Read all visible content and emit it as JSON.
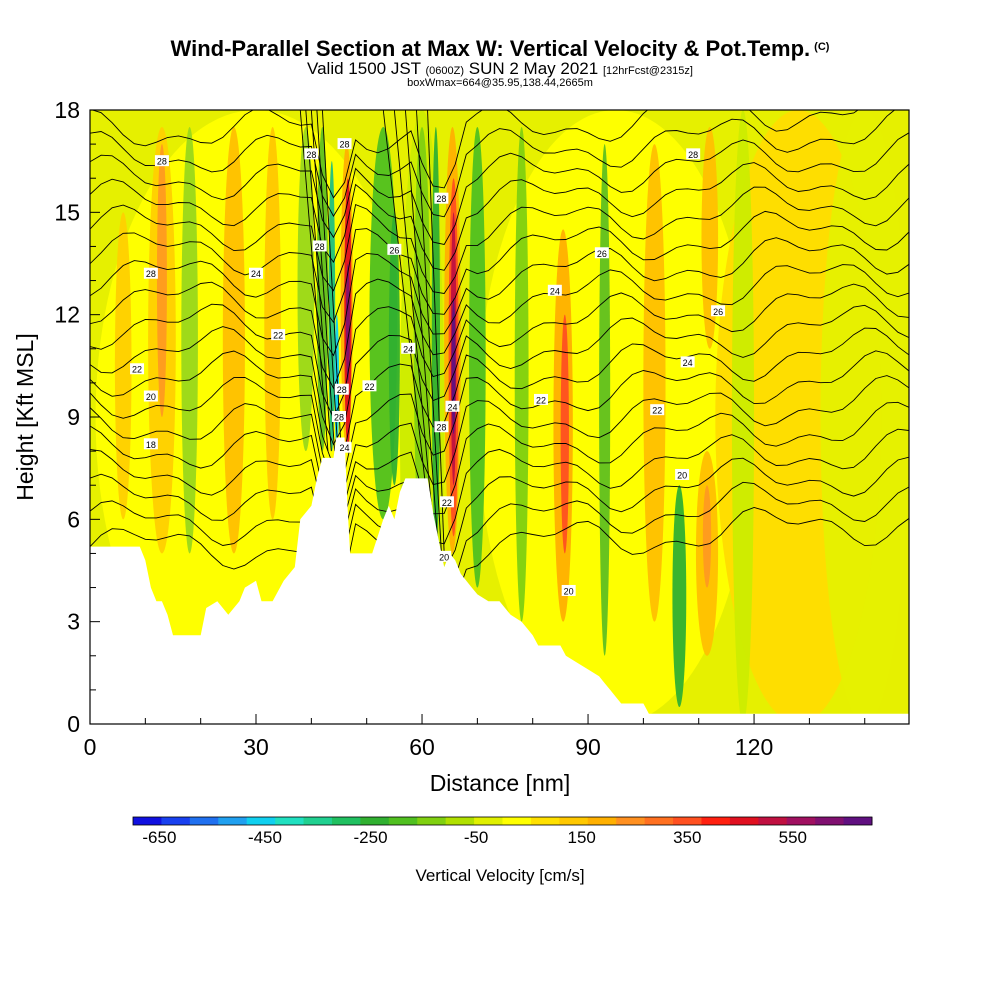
{
  "chart_data": {
    "type": "heatmap",
    "title": "Wind-Parallel Section at Max W: Vertical Velocity & Pot.Temp.",
    "title_mark": "(C)",
    "subtitle_main": "Valid 1500 JST",
    "subtitle_zulu": "(0600Z)",
    "subtitle_date": "SUN 2 May 2021",
    "subtitle_fcst": "[12hrFcst@2315z]",
    "subtitle2": "boxWmax=664@35.95,138.44,2665m",
    "xlabel": "Distance [nm]",
    "ylabel": "Height [Kft MSL]",
    "xlim": [
      0,
      148
    ],
    "ylim": [
      0,
      18
    ],
    "xticks": [
      "0",
      "30",
      "60",
      "90",
      "120"
    ],
    "yticks": [
      "0",
      "3",
      "6",
      "9",
      "12",
      "15",
      "18"
    ],
    "xtick_values": [
      0,
      30,
      60,
      90,
      120
    ],
    "ytick_values": [
      0,
      3,
      6,
      9,
      12,
      15,
      18
    ],
    "colorbar": {
      "label": "Vertical Velocity [cm/s]",
      "tick_labels": [
        "-650",
        "-450",
        "-250",
        "-50",
        "150",
        "350",
        "550"
      ],
      "tick_values": [
        -650,
        -450,
        -250,
        -50,
        150,
        350,
        550
      ],
      "min": -700,
      "max": 700,
      "colors": [
        "#1010e0",
        "#1840f0",
        "#2070f0",
        "#20a0f0",
        "#10d0f0",
        "#20e0c0",
        "#20d090",
        "#20c060",
        "#30b030",
        "#50c020",
        "#80d010",
        "#b0e000",
        "#e0f000",
        "#ffff00",
        "#ffe000",
        "#ffc800",
        "#ffb000",
        "#ff9020",
        "#ff7020",
        "#ff5020",
        "#ff2010",
        "#e01020",
        "#c01040",
        "#a01060",
        "#801070",
        "#601080"
      ]
    },
    "contour_labels": [
      {
        "text": "28",
        "x": 13,
        "y": 16.5
      },
      {
        "text": "28",
        "x": 11,
        "y": 13.2
      },
      {
        "text": "24",
        "x": 30,
        "y": 13.2
      },
      {
        "text": "22",
        "x": 34,
        "y": 11.4
      },
      {
        "text": "22",
        "x": 8.5,
        "y": 10.4
      },
      {
        "text": "20",
        "x": 11,
        "y": 9.6
      },
      {
        "text": "18",
        "x": 11,
        "y": 8.2
      },
      {
        "text": "28",
        "x": 40,
        "y": 16.7
      },
      {
        "text": "28",
        "x": 46,
        "y": 17.0
      },
      {
        "text": "28",
        "x": 41.5,
        "y": 14.0
      },
      {
        "text": "26",
        "x": 55,
        "y": 13.9
      },
      {
        "text": "24",
        "x": 57.5,
        "y": 11.0
      },
      {
        "text": "22",
        "x": 50.5,
        "y": 9.9
      },
      {
        "text": "28",
        "x": 45.5,
        "y": 9.8
      },
      {
        "text": "28",
        "x": 45,
        "y": 9.0
      },
      {
        "text": "24",
        "x": 46,
        "y": 8.1
      },
      {
        "text": "28",
        "x": 63.5,
        "y": 15.4
      },
      {
        "text": "28",
        "x": 63.5,
        "y": 8.7
      },
      {
        "text": "24",
        "x": 65.5,
        "y": 9.3
      },
      {
        "text": "22",
        "x": 64.5,
        "y": 6.5
      },
      {
        "text": "20",
        "x": 64,
        "y": 4.9
      },
      {
        "text": "24",
        "x": 84,
        "y": 12.7
      },
      {
        "text": "22",
        "x": 81.5,
        "y": 9.5
      },
      {
        "text": "20",
        "x": 86.5,
        "y": 3.9
      },
      {
        "text": "28",
        "x": 109,
        "y": 16.7
      },
      {
        "text": "26",
        "x": 92.5,
        "y": 13.8
      },
      {
        "text": "26",
        "x": 113.5,
        "y": 12.1
      },
      {
        "text": "24",
        "x": 108,
        "y": 10.6
      },
      {
        "text": "22",
        "x": 102.5,
        "y": 9.2
      },
      {
        "text": "20",
        "x": 107,
        "y": 7.3
      }
    ]
  }
}
